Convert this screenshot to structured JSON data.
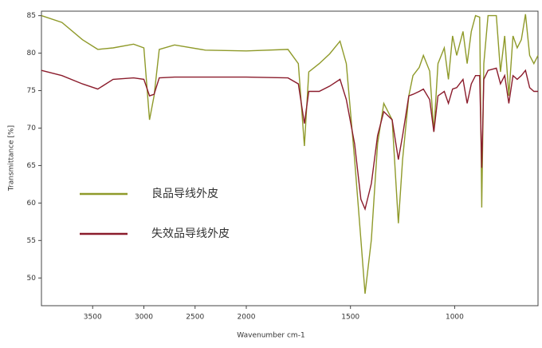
{
  "chart_data": {
    "type": "line",
    "x_label": "Wavenumber cm-1",
    "y_label": "Transmittance [%]",
    "x": [
      4000,
      3800,
      3600,
      3450,
      3300,
      3100,
      3000,
      2945,
      2900,
      2850,
      2700,
      2400,
      2000,
      1800,
      1750,
      1721,
      1700,
      1650,
      1600,
      1550,
      1520,
      1480,
      1450,
      1430,
      1400,
      1370,
      1340,
      1300,
      1270,
      1250,
      1220,
      1200,
      1170,
      1150,
      1120,
      1100,
      1080,
      1050,
      1030,
      1010,
      990,
      960,
      940,
      920,
      900,
      880,
      870,
      860,
      840,
      800,
      780,
      760,
      740,
      720,
      700,
      680,
      660,
      640,
      620,
      600
    ],
    "series": [
      {
        "name": "良品导线外皮",
        "color": "#8f9a2a",
        "values": [
          85,
          84.1,
          81.8,
          80.5,
          80.7,
          81.2,
          80.7,
          71.1,
          74.3,
          80.5,
          81.1,
          80.4,
          80.3,
          80.5,
          78.6,
          67.6,
          77.5,
          78.6,
          79.9,
          81.6,
          78.6,
          65.8,
          55.1,
          47.9,
          55.1,
          67.9,
          73.3,
          71.1,
          57.3,
          65.8,
          74.3,
          77,
          78.1,
          79.7,
          77.6,
          69.5,
          78.6,
          80.7,
          76.5,
          82.3,
          79.7,
          82.9,
          78.6,
          82.9,
          85,
          84.8,
          59.4,
          78.6,
          85,
          85,
          77.5,
          82.3,
          74.3,
          82.3,
          80.7,
          81.8,
          85.2,
          79.7,
          78.6,
          79.7
        ]
      },
      {
        "name": "失效品导线外皮",
        "color": "#8b1c2c",
        "values": [
          77.7,
          77,
          75.9,
          75.2,
          76.5,
          76.7,
          76.5,
          74.3,
          74.5,
          76.7,
          76.8,
          76.8,
          76.8,
          76.7,
          75.9,
          70.6,
          74.9,
          74.9,
          75.6,
          76.5,
          73.8,
          67.9,
          60.5,
          59.2,
          62.6,
          69,
          72.2,
          71.1,
          65.8,
          69,
          74.3,
          74.5,
          74.9,
          75.2,
          73.8,
          69.5,
          74.3,
          74.9,
          73.3,
          75.2,
          75.4,
          76.5,
          73.3,
          75.9,
          77,
          77,
          64.7,
          76.5,
          77.7,
          78,
          75.9,
          77,
          73.3,
          77,
          76.5,
          77,
          77.7,
          75.4,
          74.9,
          74.9
        ]
      }
    ],
    "xlim": [
      4000,
      600
    ],
    "x_scale_break": 2000,
    "xticks": [
      3500,
      3000,
      2500,
      2000,
      1500,
      1000
    ],
    "ylim": [
      46.3,
      85.6
    ],
    "yticks": [
      50,
      55,
      60,
      65,
      70,
      75,
      80,
      85
    ],
    "legend": "left"
  }
}
